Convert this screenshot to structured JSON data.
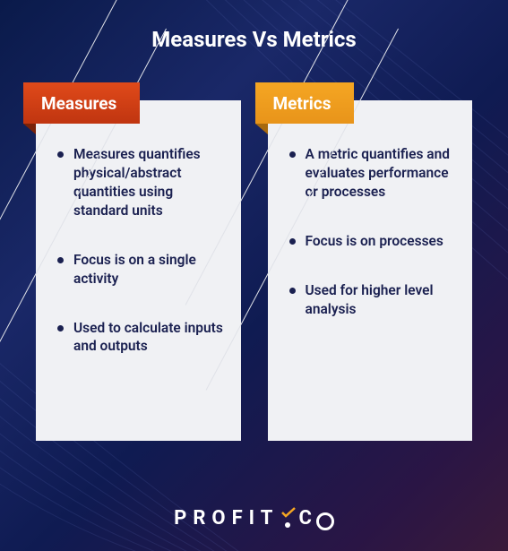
{
  "title": "Measures Vs Metrics",
  "title_color": "#ffffff",
  "background_gradient": [
    "#0a1a4a",
    "#1a2868",
    "#0f1b52",
    "#2a1545",
    "#3a1a3a"
  ],
  "wave_line_color": "#4a5aa8",
  "card_background": "#f0f1f4",
  "card_diagonal_line_color": "#e0e2e8",
  "columns": [
    {
      "id": "measures",
      "label": "Measures",
      "tab_gradient_from": "#e04a1a",
      "tab_gradient_to": "#c03510",
      "tab_fold_color": "#7a2208",
      "text_color": "#1a2050",
      "bullet_color": "#1a2050",
      "items": [
        "Measures quantifies physical/abstract quantities using standard units",
        "Focus is on a single activity",
        "Used to calculate inputs and outputs"
      ]
    },
    {
      "id": "metrics",
      "label": "Metrics",
      "tab_gradient_from": "#f5a623",
      "tab_gradient_to": "#e8941a",
      "tab_fold_color": "#a86a0f",
      "text_color": "#1a2050",
      "bullet_color": "#1a2050",
      "items": [
        "A metric quantifies and evaluates performance or processes",
        "Focus is on processes",
        "Used for higher level analysis"
      ]
    }
  ],
  "logo": {
    "text_left": "PROFIT",
    "text_right": "C",
    "accent_color": "#f5a623",
    "color": "#ffffff"
  }
}
